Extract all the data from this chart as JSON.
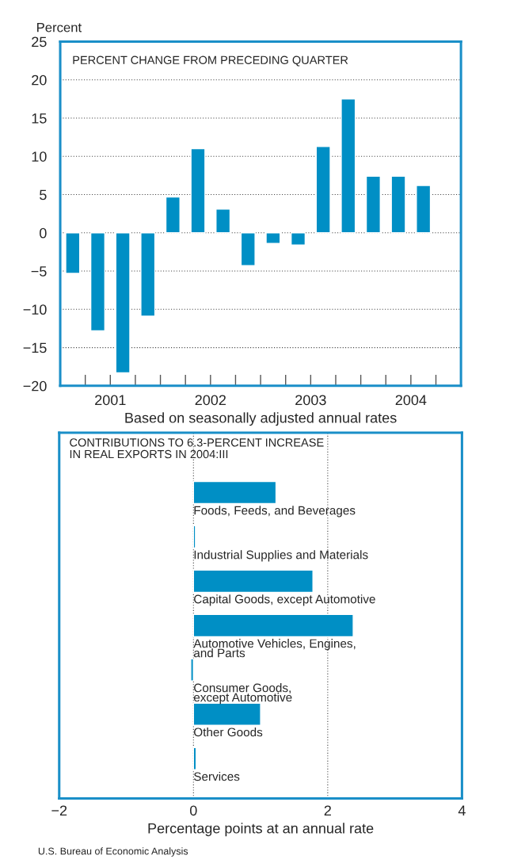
{
  "chart_data": [
    {
      "type": "bar",
      "title": "PERCENT CHANGE FROM PRECEDING QUARTER",
      "ylabel": "Percent",
      "xlabel": "Based on seasonally adjusted annual rates",
      "x": [
        2001.125,
        2001.375,
        2001.625,
        2001.875,
        2002.125,
        2002.375,
        2002.625,
        2002.875,
        2003.125,
        2003.375,
        2003.625,
        2003.875,
        2004.125,
        2004.375,
        2004.625
      ],
      "values": [
        -5.3,
        -12.8,
        -18.3,
        -10.9,
        4.7,
        11.0,
        3.1,
        -4.3,
        -1.4,
        -1.6,
        11.3,
        17.5,
        7.4,
        7.4,
        6.2
      ],
      "color": "#008fc5",
      "xlim": [
        2001,
        2005
      ],
      "ylim": [
        -20,
        25
      ],
      "xticks": [
        {
          "value": 2001.25,
          "label": null
        },
        {
          "value": 2001.5,
          "label": "2001"
        },
        {
          "value": 2001.75,
          "label": null
        },
        {
          "value": 2002,
          "label": null
        },
        {
          "value": 2002.25,
          "label": null
        },
        {
          "value": 2002.5,
          "label": "2002"
        },
        {
          "value": 2002.75,
          "label": null
        },
        {
          "value": 2003,
          "label": null
        },
        {
          "value": 2003.25,
          "label": null
        },
        {
          "value": 2003.5,
          "label": "2003"
        },
        {
          "value": 2003.75,
          "label": null
        },
        {
          "value": 2004,
          "label": null
        },
        {
          "value": 2004.25,
          "label": null
        },
        {
          "value": 2004.5,
          "label": "2004"
        },
        {
          "value": 2004.75,
          "label": null
        }
      ],
      "yticks": [
        -20,
        -15,
        -10,
        -5,
        0,
        5,
        10,
        15,
        20,
        25
      ],
      "grid": "y"
    },
    {
      "type": "bar",
      "orientation": "horizontal",
      "title": "CONTRIBUTIONS TO 6.3-PERCENT INCREASE\nIN REAL EXPORTS IN 2004:III",
      "xlabel": "Percentage points at an annual rate",
      "categories": [
        "Foods, Feeds, and Beverages",
        "Industrial Supplies and Materials",
        "Capital Goods, except Automotive",
        "Automotive Vehicles, Engines,\nand Parts",
        "Consumer Goods,\nexcept Automotive",
        "Other Goods",
        "Services"
      ],
      "values": [
        1.23,
        0.03,
        1.78,
        2.38,
        -0.04,
        1.0,
        0.04
      ],
      "color": "#008fc5",
      "xlim": [
        -2,
        4
      ],
      "xticks": [
        -2,
        0,
        2,
        4
      ],
      "grid": "x",
      "annotations": [
        "U.S. Bureau of Economic Analysis"
      ]
    }
  ]
}
